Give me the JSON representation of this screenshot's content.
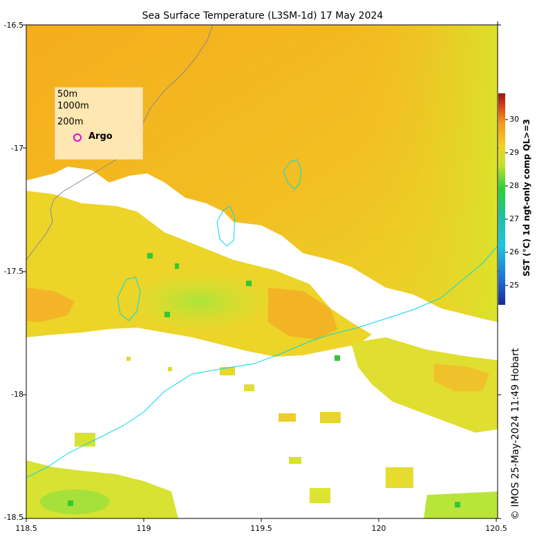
{
  "title": "Sea Surface Temperature (L3SM-1d) 17 May 2024",
  "map": {
    "lon_range": [
      118.5,
      120.5
    ],
    "lat_range": [
      -18.5,
      -16.5
    ],
    "x_ticks": [
      "118.5",
      "119",
      "119.5",
      "120",
      "120.5"
    ],
    "y_ticks": [
      "-16.5",
      "-17",
      "-17.5",
      "-18",
      "-18.5"
    ],
    "no_data_color": "#ffffff",
    "coastline_color": "#888888",
    "contour_color": "#00d8e8"
  },
  "colorbar": {
    "label": "SST (°C) 1d ngt-only comp QL>=3",
    "ticks": [
      "30",
      "29",
      "28",
      "27",
      "26",
      "25"
    ],
    "range": [
      24.5,
      30.8
    ]
  },
  "legend": {
    "items": [
      "50m",
      "1000m",
      "200m"
    ],
    "argo_label": "Argo",
    "argo_color": "#e000e0"
  },
  "credit": "© IMOS 25-May-2024 11:49 Hobart"
}
